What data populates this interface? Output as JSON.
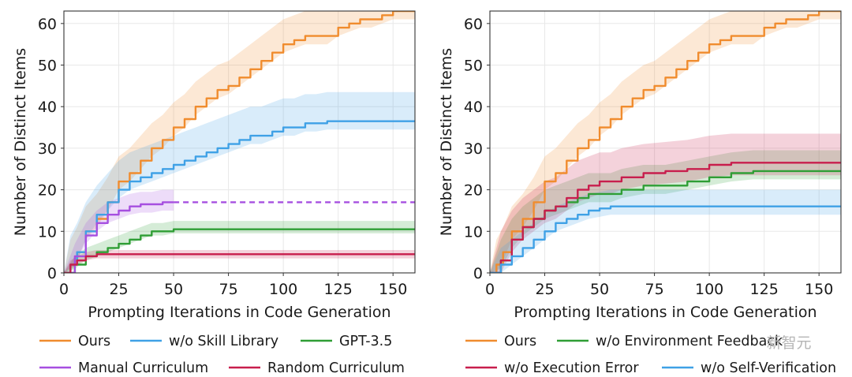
{
  "colors": {
    "Ours": "#f08c2e",
    "w/o Skill Library": "#3fa1e6",
    "GPT-3.5": "#2f9e35",
    "Manual Curriculum": "#a64fe0",
    "Random Curriculum": "#c81e4d",
    "w/o Environment Feedback": "#2f9e35",
    "w/o Execution Error": "#c81e4d",
    "w/o Self-Verification": "#3fa1e6"
  },
  "watermark": "新智元",
  "chart_data": [
    {
      "type": "line",
      "xlabel": "Prompting Iterations in Code Generation",
      "ylabel": "Number of Distinct Items",
      "xlim": [
        0,
        160
      ],
      "ylim": [
        0,
        63
      ],
      "xticks": [
        0,
        25,
        50,
        75,
        100,
        125,
        150
      ],
      "yticks": [
        0,
        10,
        20,
        30,
        40,
        50,
        60
      ],
      "grid": true,
      "legend_position": "below",
      "legend": [
        "Ours",
        "w/o Skill Library",
        "GPT-3.5",
        "Manual Curriculum",
        "Random Curriculum"
      ],
      "series": [
        {
          "name": "Ours",
          "style": "solid",
          "points": [
            [
              0,
              0
            ],
            [
              3,
              2
            ],
            [
              6,
              5
            ],
            [
              10,
              10
            ],
            [
              15,
              13
            ],
            [
              20,
              17
            ],
            [
              25,
              22
            ],
            [
              30,
              24
            ],
            [
              35,
              27
            ],
            [
              40,
              30
            ],
            [
              45,
              32
            ],
            [
              50,
              35
            ],
            [
              55,
              37
            ],
            [
              60,
              40
            ],
            [
              65,
              42
            ],
            [
              70,
              44
            ],
            [
              75,
              45
            ],
            [
              80,
              47
            ],
            [
              85,
              49
            ],
            [
              90,
              51
            ],
            [
              95,
              53
            ],
            [
              100,
              55
            ],
            [
              105,
              56
            ],
            [
              110,
              57
            ],
            [
              115,
              57
            ],
            [
              120,
              57
            ],
            [
              125,
              59
            ],
            [
              130,
              60
            ],
            [
              135,
              61
            ],
            [
              140,
              61
            ],
            [
              145,
              62
            ],
            [
              150,
              63
            ],
            [
              155,
              63
            ],
            [
              160,
              63
            ]
          ],
          "band": [
            2,
            6
          ]
        },
        {
          "name": "w/o Skill Library",
          "style": "solid",
          "points": [
            [
              0,
              0
            ],
            [
              3,
              2
            ],
            [
              6,
              5
            ],
            [
              10,
              10
            ],
            [
              15,
              14
            ],
            [
              20,
              17
            ],
            [
              25,
              20
            ],
            [
              30,
              22
            ],
            [
              35,
              23
            ],
            [
              40,
              24
            ],
            [
              45,
              25
            ],
            [
              50,
              26
            ],
            [
              55,
              27
            ],
            [
              60,
              28
            ],
            [
              65,
              29
            ],
            [
              70,
              30
            ],
            [
              75,
              31
            ],
            [
              80,
              32
            ],
            [
              85,
              33
            ],
            [
              90,
              33
            ],
            [
              95,
              34
            ],
            [
              100,
              35
            ],
            [
              105,
              35
            ],
            [
              110,
              36
            ],
            [
              115,
              36
            ],
            [
              120,
              36.5
            ],
            [
              125,
              36.5
            ],
            [
              130,
              36.5
            ],
            [
              135,
              36.5
            ],
            [
              140,
              36.5
            ],
            [
              145,
              36.5
            ],
            [
              150,
              36.5
            ],
            [
              155,
              36.5
            ],
            [
              160,
              36.5
            ]
          ],
          "band": [
            2,
            7
          ]
        },
        {
          "name": "GPT-3.5",
          "style": "solid",
          "points": [
            [
              0,
              0
            ],
            [
              5,
              2
            ],
            [
              10,
              4
            ],
            [
              15,
              5
            ],
            [
              20,
              6
            ],
            [
              25,
              7
            ],
            [
              30,
              8
            ],
            [
              35,
              9
            ],
            [
              40,
              10
            ],
            [
              45,
              10
            ],
            [
              50,
              10.5
            ],
            [
              60,
              10.5
            ],
            [
              80,
              10.5
            ],
            [
              100,
              10.5
            ],
            [
              120,
              10.5
            ],
            [
              140,
              10.5
            ],
            [
              160,
              10.5
            ]
          ],
          "band": [
            1,
            2
          ]
        },
        {
          "name": "Manual Curriculum",
          "style": "solid",
          "points": [
            [
              0,
              0
            ],
            [
              5,
              4
            ],
            [
              10,
              9
            ],
            [
              15,
              12
            ],
            [
              20,
              14
            ],
            [
              25,
              15
            ],
            [
              30,
              16
            ],
            [
              35,
              16.5
            ],
            [
              40,
              16.5
            ],
            [
              45,
              17
            ],
            [
              50,
              17
            ]
          ],
          "band": [
            2,
            3
          ]
        },
        {
          "name": "Manual Curriculum",
          "style": "dashed",
          "points": [
            [
              50,
              17
            ],
            [
              75,
              17
            ],
            [
              100,
              17
            ],
            [
              125,
              17
            ],
            [
              150,
              17
            ],
            [
              160,
              17
            ]
          ],
          "band": [
            0,
            0
          ]
        },
        {
          "name": "Random Curriculum",
          "style": "solid",
          "points": [
            [
              0,
              0
            ],
            [
              3,
              2
            ],
            [
              6,
              3
            ],
            [
              10,
              4
            ],
            [
              15,
              4.5
            ],
            [
              20,
              4.5
            ],
            [
              40,
              4.5
            ],
            [
              60,
              4.5
            ],
            [
              80,
              4.5
            ],
            [
              100,
              4.5
            ],
            [
              120,
              4.5
            ],
            [
              140,
              4.5
            ],
            [
              160,
              4.5
            ]
          ],
          "band": [
            1,
            1
          ]
        }
      ]
    },
    {
      "type": "line",
      "xlabel": "Prompting Iterations in Code Generation",
      "ylabel": "Number of Distinct Items",
      "xlim": [
        0,
        160
      ],
      "ylim": [
        0,
        63
      ],
      "xticks": [
        0,
        25,
        50,
        75,
        100,
        125,
        150
      ],
      "yticks": [
        0,
        10,
        20,
        30,
        40,
        50,
        60
      ],
      "grid": true,
      "legend_position": "below",
      "legend": [
        "Ours",
        "w/o Environment Feedback",
        "w/o Execution Error",
        "w/o Self-Verification"
      ],
      "series": [
        {
          "name": "Ours",
          "style": "solid",
          "points": [
            [
              0,
              0
            ],
            [
              3,
              2
            ],
            [
              6,
              5
            ],
            [
              10,
              10
            ],
            [
              15,
              13
            ],
            [
              20,
              17
            ],
            [
              25,
              22
            ],
            [
              30,
              24
            ],
            [
              35,
              27
            ],
            [
              40,
              30
            ],
            [
              45,
              32
            ],
            [
              50,
              35
            ],
            [
              55,
              37
            ],
            [
              60,
              40
            ],
            [
              65,
              42
            ],
            [
              70,
              44
            ],
            [
              75,
              45
            ],
            [
              80,
              47
            ],
            [
              85,
              49
            ],
            [
              90,
              51
            ],
            [
              95,
              53
            ],
            [
              100,
              55
            ],
            [
              105,
              56
            ],
            [
              110,
              57
            ],
            [
              115,
              57
            ],
            [
              120,
              57
            ],
            [
              125,
              59
            ],
            [
              130,
              60
            ],
            [
              135,
              61
            ],
            [
              140,
              61
            ],
            [
              145,
              62
            ],
            [
              150,
              63
            ],
            [
              155,
              63
            ],
            [
              160,
              63
            ]
          ],
          "band": [
            2,
            6
          ]
        },
        {
          "name": "w/o Environment Feedback",
          "style": "solid",
          "points": [
            [
              0,
              0
            ],
            [
              5,
              3
            ],
            [
              10,
              8
            ],
            [
              15,
              11
            ],
            [
              20,
              13
            ],
            [
              25,
              15
            ],
            [
              30,
              16
            ],
            [
              35,
              17
            ],
            [
              40,
              18
            ],
            [
              45,
              19
            ],
            [
              50,
              19
            ],
            [
              55,
              19
            ],
            [
              60,
              20
            ],
            [
              70,
              21
            ],
            [
              80,
              21
            ],
            [
              90,
              22
            ],
            [
              100,
              23
            ],
            [
              110,
              24
            ],
            [
              120,
              24.5
            ],
            [
              130,
              24.5
            ],
            [
              140,
              24.5
            ],
            [
              150,
              24.5
            ],
            [
              160,
              24.5
            ]
          ],
          "band": [
            2,
            5
          ]
        },
        {
          "name": "w/o Execution Error",
          "style": "solid",
          "points": [
            [
              0,
              0
            ],
            [
              5,
              3
            ],
            [
              10,
              8
            ],
            [
              15,
              11
            ],
            [
              20,
              13
            ],
            [
              25,
              15
            ],
            [
              30,
              16
            ],
            [
              35,
              18
            ],
            [
              40,
              20
            ],
            [
              45,
              21
            ],
            [
              50,
              22
            ],
            [
              55,
              22
            ],
            [
              60,
              23
            ],
            [
              70,
              24
            ],
            [
              80,
              24.5
            ],
            [
              90,
              25
            ],
            [
              100,
              26
            ],
            [
              110,
              26.5
            ],
            [
              120,
              26.5
            ],
            [
              130,
              26.5
            ],
            [
              140,
              26.5
            ],
            [
              150,
              26.5
            ],
            [
              160,
              26.5
            ]
          ],
          "band": [
            3,
            7
          ]
        },
        {
          "name": "w/o Self-Verification",
          "style": "solid",
          "points": [
            [
              0,
              0
            ],
            [
              5,
              2
            ],
            [
              10,
              4
            ],
            [
              15,
              6
            ],
            [
              20,
              8
            ],
            [
              25,
              10
            ],
            [
              30,
              12
            ],
            [
              35,
              13
            ],
            [
              40,
              14
            ],
            [
              45,
              15
            ],
            [
              50,
              15.5
            ],
            [
              55,
              16
            ],
            [
              60,
              16
            ],
            [
              80,
              16
            ],
            [
              100,
              16
            ],
            [
              120,
              16
            ],
            [
              140,
              16
            ],
            [
              160,
              16
            ]
          ],
          "band": [
            2,
            4
          ]
        }
      ]
    }
  ]
}
